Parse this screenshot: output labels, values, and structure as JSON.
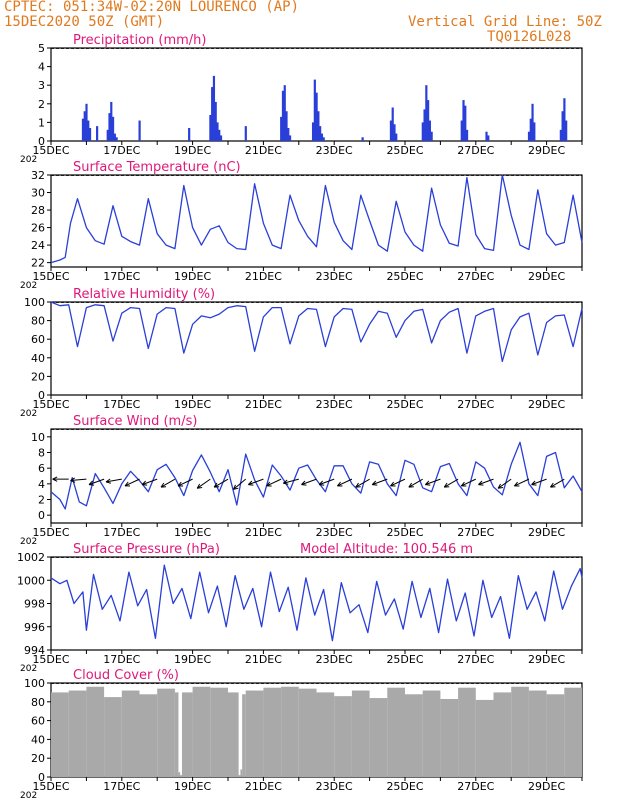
{
  "header": {
    "line1": "CPTEC:   051:34W-02:20N  LOURENCO (AP)",
    "line2": "15DEC2020 50Z (GMT)",
    "right1": "Vertical Grid Line: 50Z",
    "right2": "TQ0126L028"
  },
  "colors": {
    "header": "#e07a1f",
    "title": "#e0187a",
    "line": "#2a3fd8",
    "cloud": "#a9a9a9"
  },
  "x_tick_labels": [
    "15DEC",
    "17DEC",
    "19DEC",
    "21DEC",
    "23DEC",
    "25DEC",
    "27DEC",
    "29DEC"
  ],
  "year_label": "202",
  "chart_data": [
    {
      "id": "precip",
      "type": "bar",
      "title": "Precipitation (mm/h)",
      "x_unit": "days since 15DEC 00Z",
      "ylim": [
        0,
        5
      ],
      "yticks": [
        0,
        1,
        2,
        3,
        4,
        5
      ],
      "x": [
        0.9,
        0.95,
        1.0,
        1.05,
        1.1,
        1.3,
        1.6,
        1.65,
        1.7,
        1.75,
        1.8,
        1.85,
        2.5,
        3.9,
        4.5,
        4.55,
        4.6,
        4.65,
        4.7,
        4.75,
        4.8,
        5.5,
        6.5,
        6.55,
        6.6,
        6.65,
        6.7,
        6.75,
        7.4,
        7.45,
        7.5,
        7.55,
        7.6,
        7.65,
        7.7,
        8.8,
        9.6,
        9.65,
        9.7,
        9.75,
        10.5,
        10.55,
        10.6,
        10.65,
        10.7,
        10.75,
        11.6,
        11.65,
        11.7,
        11.75,
        12.3,
        12.35,
        13.5,
        13.55,
        13.6,
        13.65,
        14.4,
        14.45,
        14.5,
        14.55
      ],
      "values": [
        1.2,
        1.6,
        2.0,
        1.1,
        0.7,
        0.8,
        0.6,
        1.5,
        2.1,
        1.3,
        0.4,
        0.2,
        1.1,
        0.7,
        1.4,
        2.9,
        3.5,
        2.1,
        1.0,
        0.6,
        0.3,
        0.8,
        1.3,
        2.7,
        3.0,
        1.6,
        0.7,
        0.3,
        1.0,
        3.3,
        2.6,
        1.6,
        0.8,
        0.4,
        0.2,
        0.2,
        1.1,
        1.8,
        0.9,
        0.4,
        1.0,
        1.7,
        3.0,
        2.2,
        1.1,
        0.5,
        1.1,
        2.2,
        1.9,
        0.6,
        0.5,
        0.3,
        0.5,
        1.2,
        2.0,
        1.0,
        0.6,
        1.6,
        2.3,
        1.1
      ]
    },
    {
      "id": "temp",
      "type": "line",
      "title": "Surface Temperature (nC)",
      "x_unit": "days since 15DEC 00Z",
      "ylim": [
        21.5,
        32
      ],
      "yticks": [
        22,
        24,
        26,
        28,
        30,
        32
      ],
      "x": [
        0,
        0.25,
        0.4,
        0.55,
        0.75,
        1.0,
        1.25,
        1.5,
        1.75,
        2.0,
        2.25,
        2.5,
        2.75,
        3.0,
        3.25,
        3.5,
        3.75,
        4.0,
        4.25,
        4.5,
        4.75,
        5.0,
        5.25,
        5.5,
        5.75,
        6.0,
        6.25,
        6.5,
        6.75,
        7.0,
        7.25,
        7.5,
        7.75,
        8.0,
        8.25,
        8.5,
        8.75,
        9.0,
        9.25,
        9.5,
        9.75,
        10.0,
        10.25,
        10.5,
        10.75,
        11.0,
        11.25,
        11.5,
        11.75,
        12.0,
        12.25,
        12.5,
        12.75,
        13.0,
        13.25,
        13.5,
        13.75,
        14.0,
        14.25,
        14.5,
        14.75,
        15.0
      ],
      "values": [
        22.0,
        22.3,
        22.6,
        26.5,
        29.3,
        26.0,
        24.5,
        24.1,
        28.5,
        25.0,
        24.4,
        24.0,
        29.3,
        25.3,
        24.0,
        23.6,
        30.8,
        26.0,
        24.0,
        25.8,
        26.2,
        24.3,
        23.6,
        23.5,
        31.0,
        26.5,
        24.0,
        23.6,
        29.7,
        26.8,
        25.0,
        23.8,
        30.8,
        26.6,
        24.5,
        23.5,
        29.7,
        26.8,
        24.0,
        23.3,
        29.0,
        25.5,
        24.0,
        23.3,
        30.5,
        26.3,
        24.2,
        23.9,
        31.7,
        25.2,
        23.6,
        23.4,
        32.0,
        27.4,
        24.0,
        23.5,
        30.3,
        25.3,
        24.0,
        24.3,
        29.7,
        24.3
      ]
    },
    {
      "id": "rh",
      "type": "line",
      "title": "Relative Humidity (%)",
      "x_unit": "days since 15DEC 00Z",
      "ylim": [
        0,
        100
      ],
      "yticks": [
        0,
        20,
        40,
        60,
        80,
        100
      ],
      "x": [
        0,
        0.25,
        0.5,
        0.75,
        1.0,
        1.25,
        1.5,
        1.75,
        2.0,
        2.25,
        2.5,
        2.75,
        3.0,
        3.25,
        3.5,
        3.75,
        4.0,
        4.25,
        4.5,
        4.75,
        5.0,
        5.25,
        5.5,
        5.75,
        6.0,
        6.25,
        6.5,
        6.75,
        7.0,
        7.25,
        7.5,
        7.75,
        8.0,
        8.25,
        8.5,
        8.75,
        9.0,
        9.25,
        9.5,
        9.75,
        10.0,
        10.25,
        10.5,
        10.75,
        11.0,
        11.25,
        11.5,
        11.75,
        12.0,
        12.25,
        12.5,
        12.75,
        13.0,
        13.25,
        13.5,
        13.75,
        14.0,
        14.25,
        14.5,
        14.75,
        15.0
      ],
      "values": [
        100,
        96,
        97,
        52,
        94,
        97,
        96,
        58,
        88,
        94,
        93,
        50,
        87,
        94,
        93,
        45,
        76,
        85,
        83,
        87,
        94,
        96,
        95,
        47,
        84,
        94,
        94,
        55,
        85,
        93,
        92,
        52,
        84,
        93,
        92,
        57,
        76,
        90,
        88,
        62,
        80,
        90,
        92,
        56,
        80,
        89,
        93,
        45,
        85,
        90,
        93,
        36,
        70,
        84,
        88,
        43,
        78,
        85,
        86,
        52,
        93
      ]
    },
    {
      "id": "wind",
      "type": "line",
      "title": "Surface Wind (m/s)",
      "x_unit": "days since 15DEC 00Z",
      "ylim": [
        -1,
        11
      ],
      "yticks": [
        0,
        2,
        4,
        6,
        8,
        10
      ],
      "x": [
        0,
        0.25,
        0.4,
        0.6,
        0.8,
        1.0,
        1.25,
        1.5,
        1.75,
        2.0,
        2.25,
        2.5,
        2.75,
        3.0,
        3.25,
        3.5,
        3.75,
        4.0,
        4.25,
        4.5,
        4.75,
        5.0,
        5.25,
        5.5,
        5.75,
        6.0,
        6.25,
        6.5,
        6.75,
        7.0,
        7.25,
        7.5,
        7.75,
        8.0,
        8.25,
        8.5,
        8.75,
        9.0,
        9.25,
        9.5,
        9.75,
        10.0,
        10.25,
        10.5,
        10.75,
        11.0,
        11.25,
        11.5,
        11.75,
        12.0,
        12.25,
        12.5,
        12.75,
        13.0,
        13.25,
        13.5,
        13.75,
        14.0,
        14.25,
        14.5,
        14.75,
        15.0
      ],
      "values": [
        3.0,
        2.0,
        0.8,
        4.8,
        1.7,
        1.2,
        5.3,
        3.5,
        1.5,
        4.0,
        5.6,
        4.4,
        3.0,
        5.8,
        6.5,
        4.8,
        2.5,
        5.7,
        7.7,
        5.5,
        3.0,
        5.8,
        1.3,
        7.8,
        4.5,
        2.3,
        6.4,
        5.0,
        3.2,
        6.0,
        6.4,
        4.5,
        3.0,
        6.3,
        6.3,
        4.0,
        2.8,
        6.8,
        6.5,
        4.0,
        2.5,
        7.0,
        6.5,
        3.5,
        3.0,
        6.2,
        6.6,
        4.0,
        2.5,
        6.8,
        6.0,
        3.6,
        2.6,
        6.5,
        9.3,
        4.0,
        2.5,
        7.5,
        8.0,
        3.5,
        5.0,
        3.0
      ],
      "arrows_x": [
        0.5,
        1.0,
        1.5,
        2.0,
        2.5,
        3.0,
        3.5,
        4.0,
        4.5,
        5.0,
        5.5,
        6.0,
        6.5,
        7.0,
        7.5,
        8.0,
        8.5,
        9.0,
        9.5,
        10.0,
        10.5,
        11.0,
        11.5,
        12.0,
        12.5,
        13.0,
        13.5,
        14.0,
        14.5
      ],
      "arrows_dir_deg": [
        180,
        185,
        200,
        190,
        205,
        200,
        210,
        205,
        215,
        210,
        220,
        200,
        205,
        195,
        200,
        200,
        205,
        210,
        200,
        205,
        210,
        200,
        210,
        205,
        200,
        215,
        205,
        200,
        210
      ]
    },
    {
      "id": "pressure",
      "type": "line",
      "title": "Surface Pressure (hPa)",
      "annotation": "Model Altitude: 100.546  m",
      "x_unit": "days since 15DEC 00Z",
      "ylim": [
        994,
        1002
      ],
      "yticks": [
        994,
        996,
        998,
        1000,
        1002
      ],
      "x": [
        0,
        0.25,
        0.45,
        0.65,
        0.9,
        1.0,
        1.2,
        1.45,
        1.7,
        1.95,
        2.2,
        2.45,
        2.7,
        2.95,
        3.2,
        3.45,
        3.7,
        3.95,
        4.2,
        4.45,
        4.7,
        4.95,
        5.2,
        5.45,
        5.7,
        5.95,
        6.2,
        6.45,
        6.7,
        6.95,
        7.2,
        7.45,
        7.7,
        7.95,
        8.2,
        8.45,
        8.7,
        8.95,
        9.2,
        9.45,
        9.7,
        9.95,
        10.2,
        10.45,
        10.7,
        10.95,
        11.2,
        11.45,
        11.7,
        11.95,
        12.2,
        12.45,
        12.7,
        12.95,
        13.2,
        13.45,
        13.7,
        13.95,
        14.2,
        14.45,
        14.7,
        14.95,
        15.0
      ],
      "values": [
        1000.2,
        999.7,
        1000.0,
        998.0,
        999.0,
        995.7,
        1000.5,
        997.5,
        998.7,
        996.5,
        1000.7,
        997.8,
        999.2,
        995.0,
        1001.3,
        998.0,
        999.3,
        996.7,
        1000.7,
        997.2,
        999.5,
        996.0,
        1000.4,
        997.5,
        999.3,
        996.0,
        1000.7,
        997.3,
        999.4,
        995.7,
        1000.2,
        997.0,
        999.2,
        994.8,
        999.8,
        997.2,
        997.9,
        995.5,
        999.9,
        997.0,
        998.4,
        995.8,
        999.9,
        996.8,
        999.3,
        995.5,
        1000.1,
        996.5,
        998.9,
        995.2,
        1000.0,
        996.8,
        998.6,
        995.0,
        1000.4,
        997.5,
        999.0,
        996.5,
        1000.8,
        997.5,
        999.5,
        1001.0,
        1000.2
      ]
    },
    {
      "id": "cloud",
      "type": "area",
      "title": "Cloud Cover (%)",
      "x_unit": "days since 15DEC 00Z",
      "ylim": [
        0,
        100
      ],
      "yticks": [
        0,
        20,
        40,
        60,
        80,
        100
      ],
      "x": [
        0,
        0.5,
        1.0,
        1.5,
        2.0,
        2.5,
        3.0,
        3.5,
        3.6,
        3.65,
        3.7,
        4.0,
        4.5,
        5.0,
        5.3,
        5.35,
        5.4,
        5.5,
        6.0,
        6.5,
        7.0,
        7.5,
        8.0,
        8.5,
        9.0,
        9.5,
        10.0,
        10.5,
        11.0,
        11.5,
        12.0,
        12.5,
        13.0,
        13.5,
        14.0,
        14.5,
        15.0
      ],
      "values": [
        90,
        92,
        96,
        85,
        92,
        88,
        94,
        90,
        5,
        2,
        90,
        96,
        95,
        90,
        2,
        8,
        88,
        92,
        95,
        96,
        94,
        90,
        86,
        92,
        84,
        95,
        88,
        92,
        83,
        95,
        82,
        90,
        96,
        92,
        88,
        95,
        96
      ]
    }
  ]
}
